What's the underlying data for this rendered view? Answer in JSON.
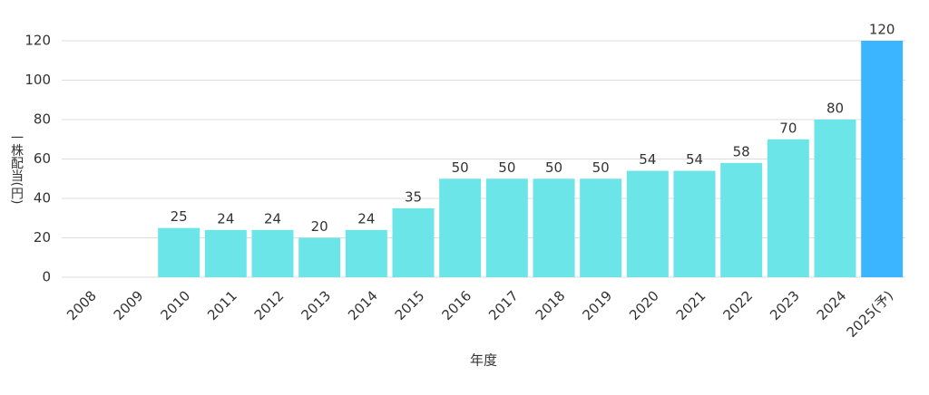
{
  "chart_data": {
    "type": "bar",
    "x_label": "年度",
    "y_label": "一株配当(円)",
    "categories": [
      "2008",
      "2009",
      "2010",
      "2011",
      "2012",
      "2013",
      "2014",
      "2015",
      "2016",
      "2017",
      "2018",
      "2019",
      "2020",
      "2021",
      "2022",
      "2023",
      "2024",
      "2025(予)"
    ],
    "values": [
      null,
      null,
      25,
      24,
      24,
      20,
      24,
      35,
      50,
      50,
      50,
      50,
      54,
      54,
      58,
      70,
      80,
      120
    ],
    "colors": [
      "#6ce5e8",
      "#6ce5e8",
      "#6ce5e8",
      "#6ce5e8",
      "#6ce5e8",
      "#6ce5e8",
      "#6ce5e8",
      "#6ce5e8",
      "#6ce5e8",
      "#6ce5e8",
      "#6ce5e8",
      "#6ce5e8",
      "#6ce5e8",
      "#6ce5e8",
      "#6ce5e8",
      "#6ce5e8",
      "#6ce5e8",
      "#3bb5ff"
    ],
    "ylim": [
      0,
      120
    ],
    "yticks": [
      0,
      20,
      40,
      60,
      80,
      100,
      120
    ],
    "grid": true
  }
}
